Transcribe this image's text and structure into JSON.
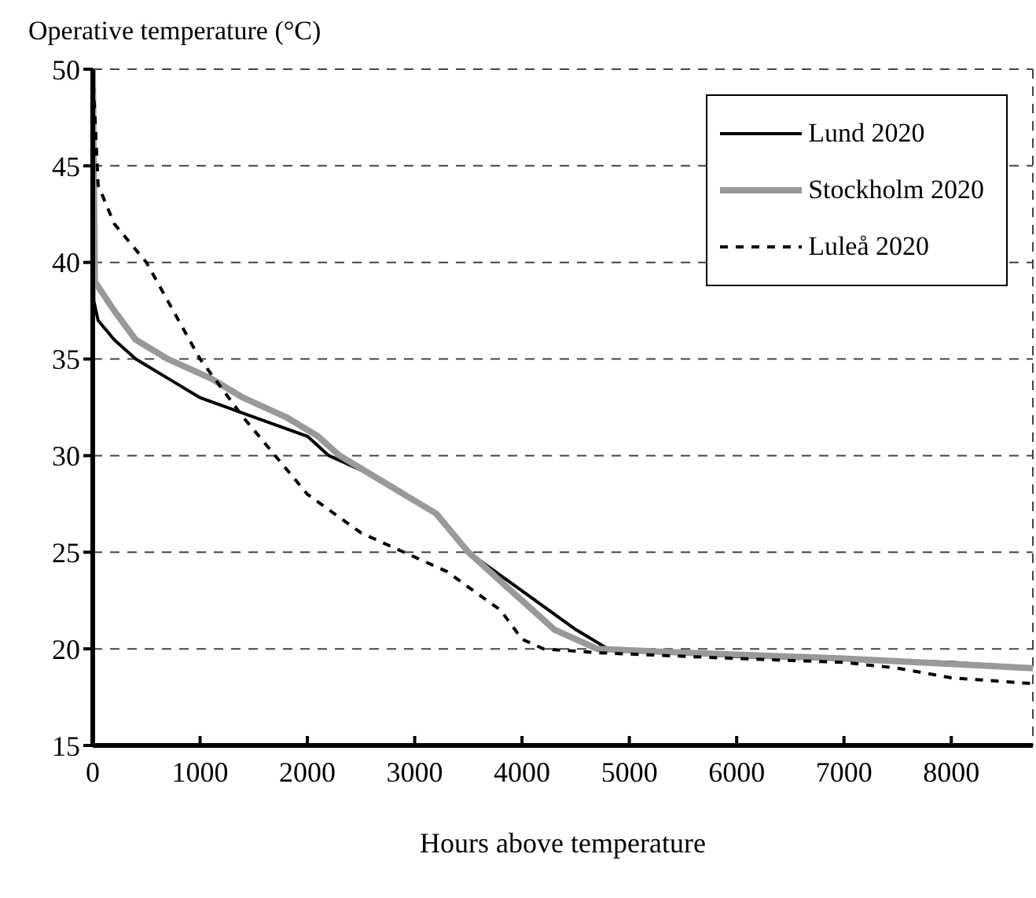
{
  "chart_data": {
    "type": "line",
    "xlabel": "Hours above temperature",
    "ylabel": "Operative temperature (°C)",
    "xlim": [
      0,
      8760
    ],
    "xticks": [
      0,
      1000,
      2000,
      3000,
      4000,
      5000,
      6000,
      7000,
      8000
    ],
    "ylim": [
      15,
      50
    ],
    "yticks": [
      15,
      20,
      25,
      30,
      35,
      40,
      45,
      50
    ],
    "grid": true,
    "legend": "top right",
    "marker": "none",
    "series": [
      {
        "name": "Lund 2020",
        "color": "#000000",
        "line_style": "solid",
        "x": [
          0,
          10,
          50,
          200,
          400,
          700,
          1000,
          1500,
          2000,
          2200,
          2600,
          2900,
          3200,
          3500,
          4000,
          4500,
          4800,
          6000,
          8000,
          8760
        ],
        "values": [
          50,
          38,
          37,
          36,
          35,
          34,
          33,
          32,
          31,
          30,
          29,
          28,
          27,
          25,
          23,
          21,
          20,
          19.6,
          19.3,
          19
        ]
      },
      {
        "name": "Stockholm 2020",
        "color": "#999999",
        "line_style": "solid",
        "x": [
          0,
          20,
          200,
          400,
          700,
          1100,
          1400,
          1800,
          2100,
          2300,
          2600,
          2900,
          3200,
          3500,
          3900,
          4300,
          4700,
          5500,
          7000,
          8760
        ],
        "values": [
          50,
          39,
          37.5,
          36,
          35,
          34,
          33,
          32,
          31,
          30,
          29,
          28,
          27,
          25,
          23,
          21,
          20,
          19.8,
          19.5,
          19
        ]
      },
      {
        "name": "Luleå 2020",
        "color": "#000000",
        "line_style": "dashed",
        "x": [
          0,
          50,
          200,
          500,
          700,
          1000,
          1400,
          1700,
          2000,
          2500,
          2900,
          3300,
          3800,
          4000,
          4200,
          4700,
          6000,
          7000,
          7500,
          8000,
          8760
        ],
        "values": [
          50,
          44,
          42,
          40,
          38,
          35,
          32,
          30,
          28,
          26,
          25,
          24,
          22,
          20.5,
          20,
          19.8,
          19.5,
          19.3,
          19,
          18.5,
          18.2
        ]
      }
    ]
  }
}
